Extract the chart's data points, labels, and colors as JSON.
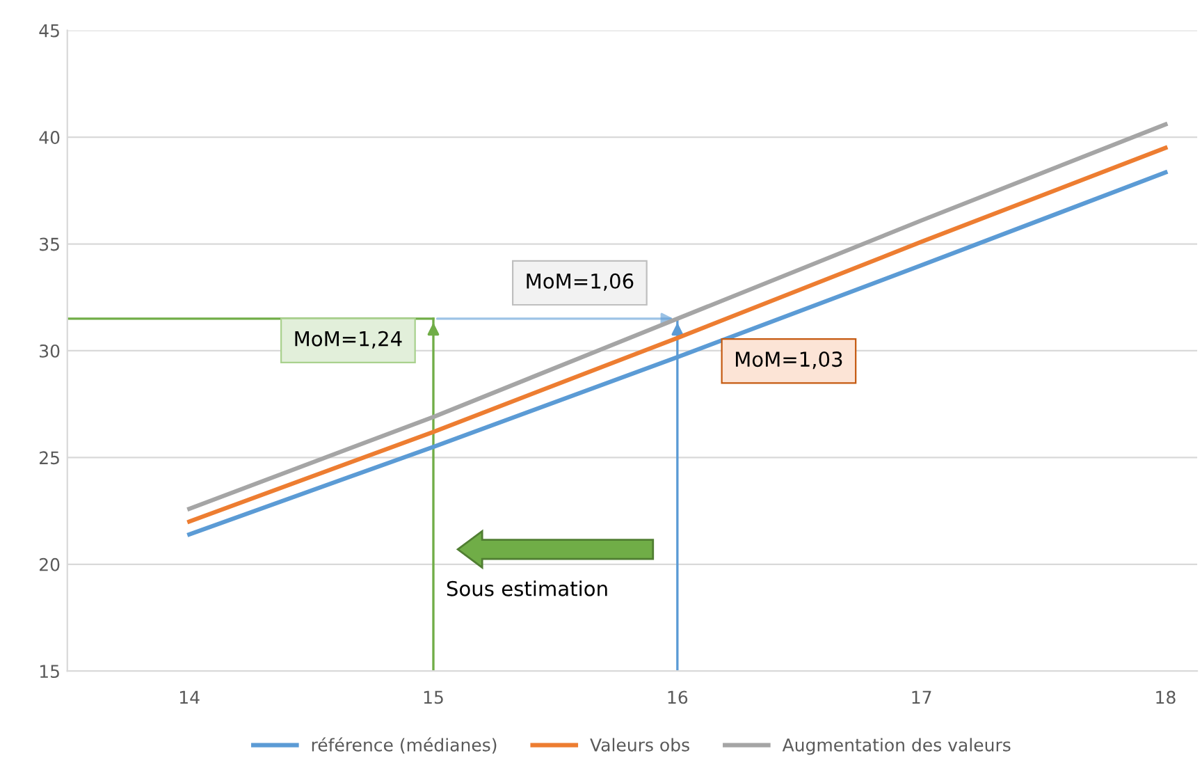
{
  "chart_data": {
    "type": "line",
    "x": [
      14,
      15,
      16,
      17,
      18
    ],
    "series": [
      {
        "name": "référence (médianes)",
        "color": "#5b9bd5",
        "values": [
          21.4,
          25.5,
          29.7,
          34.0,
          38.35
        ]
      },
      {
        "name": "Valeurs obs",
        "color": "#ed7d31",
        "values": [
          22.0,
          26.2,
          30.6,
          35.1,
          39.5
        ]
      },
      {
        "name": "Augmentation des valeurs",
        "color": "#a5a5a5",
        "values": [
          22.6,
          26.9,
          31.5,
          36.1,
          40.6
        ]
      }
    ],
    "xlim": [
      13.5,
      18.13
    ],
    "xticks": [
      14,
      15,
      16,
      17,
      18
    ],
    "ylim": [
      15,
      45
    ],
    "yticks": [
      15,
      20,
      25,
      30,
      35,
      40,
      45
    ],
    "grid": "y",
    "legend": "bottom",
    "marker": "none",
    "line_style": "solid",
    "ref_lines": [
      {
        "axis": "x",
        "value": 15,
        "color": "#70ad47"
      },
      {
        "axis": "x",
        "value": 16,
        "color": "#5b9bd5"
      },
      {
        "axis": "y",
        "value": 31.5,
        "color": "#70ad47"
      }
    ],
    "annotations": [
      "MoM=1,06",
      "MoM=1,24",
      "MoM=1,03",
      "Sous estimation"
    ]
  }
}
